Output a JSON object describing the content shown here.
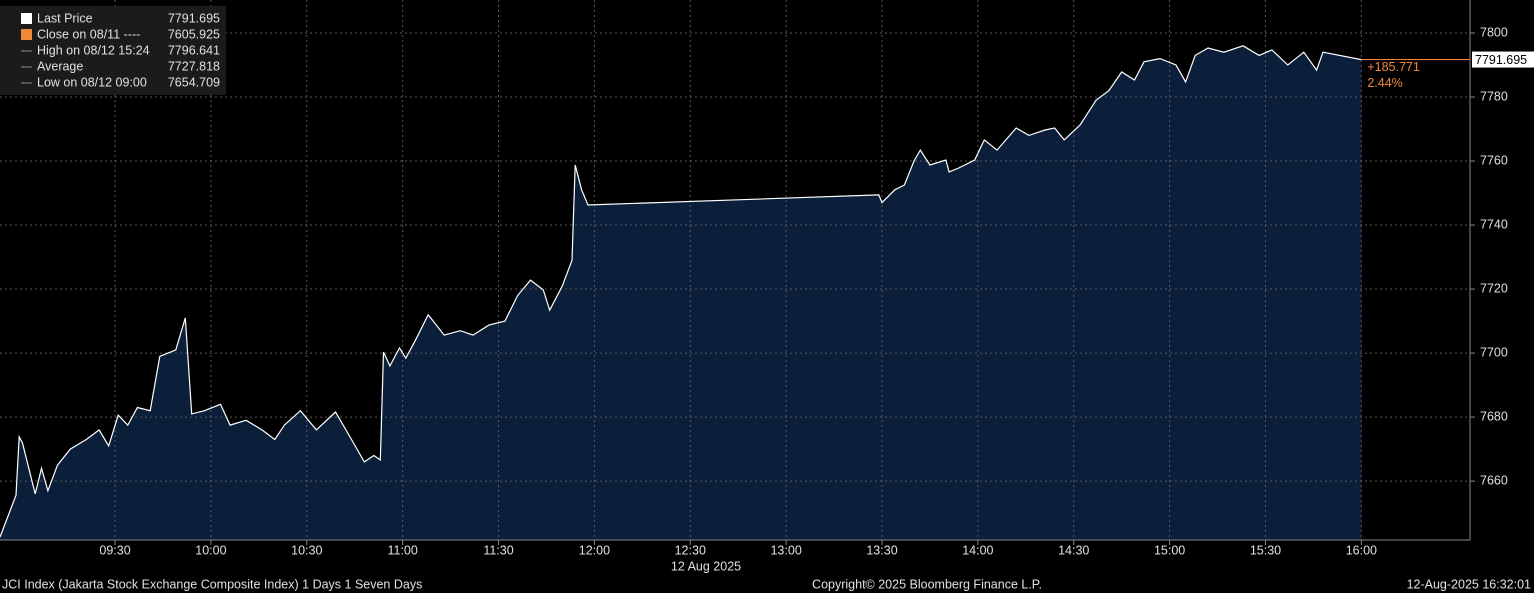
{
  "chart_data": {
    "type": "area",
    "legend": [
      {
        "label": "Last Price",
        "value": 7791.695
      },
      {
        "label": "Close on 08/11 ----",
        "value": 7605.925
      },
      {
        "label": "High on 08/12 15:24",
        "value": 7796.641
      },
      {
        "label": "Average",
        "value": 7727.818
      },
      {
        "label": "Low on 08/12 09:00",
        "value": 7654.709
      }
    ],
    "x": [
      "08:54",
      "08:59",
      "09:00",
      "09:01",
      "09:05",
      "09:07",
      "09:09",
      "09:12",
      "09:16",
      "09:21",
      "09:25",
      "09:28",
      "09:31",
      "09:34",
      "09:37",
      "09:41",
      "09:44",
      "09:49",
      "09:52",
      "09:54",
      "09:58",
      "10:03",
      "10:06",
      "10:11",
      "10:16",
      "10:20",
      "10:23",
      "10:28",
      "10:33",
      "10:39",
      "10:44",
      "10:48",
      "10:51",
      "10:53",
      "10:54",
      "10:56",
      "10:59",
      "11:01",
      "11:04",
      "11:08",
      "11:13",
      "11:18",
      "11:22",
      "11:27",
      "11:32",
      "11:36",
      "11:40",
      "11:44",
      "11:46",
      "11:50",
      "11:53",
      "11:54",
      "11:56",
      "11:58",
      "13:29",
      "13:30",
      "13:34",
      "13:37",
      "13:40",
      "13:42",
      "13:45",
      "13:50",
      "13:51",
      "13:54",
      "13:59",
      "14:02",
      "14:06",
      "14:12",
      "14:16",
      "14:21",
      "14:24",
      "14:27",
      "14:32",
      "14:37",
      "14:41",
      "14:45",
      "14:49",
      "14:52",
      "14:57",
      "15:02",
      "15:05",
      "15:08",
      "15:12",
      "15:17",
      "15:23",
      "15:28",
      "15:32",
      "15:37",
      "15:42",
      "15:46",
      "15:48",
      "16:00"
    ],
    "series": [
      {
        "color": "#ffffff",
        "fill": "#0b1f3b",
        "values": [
          7642.5,
          7655.6,
          7673.8,
          7672,
          7656,
          7664,
          7657,
          7665,
          7670,
          7673,
          7676,
          7671,
          7680.6,
          7677.5,
          7683,
          7682,
          7699,
          7701,
          7711,
          7681,
          7682,
          7684,
          7677.5,
          7679,
          7676,
          7673,
          7677.5,
          7682,
          7676,
          7681.6,
          7673,
          7666,
          7668,
          7666.6,
          7700.3,
          7696,
          7701.6,
          7698.4,
          7704,
          7712,
          7705.6,
          7707,
          7705.6,
          7708.75,
          7710,
          7718,
          7722.8,
          7719.7,
          7713.4,
          7721,
          7729,
          7758.75,
          7751,
          7746.25,
          7749.4,
          7747,
          7751,
          7752.5,
          7760,
          7763.4,
          7758.75,
          7760.3,
          7756.6,
          7757.8,
          7760.3,
          7766.6,
          7763.4,
          7770.3,
          7768,
          7769.7,
          7770.3,
          7766.6,
          7771.25,
          7779,
          7782,
          7787.8,
          7785.3,
          7791,
          7792,
          7790,
          7784.7,
          7793,
          7795.3,
          7794,
          7796,
          7793,
          7794.7,
          7790,
          7794,
          7788.4,
          7794,
          7791.695
        ]
      }
    ],
    "xlim": [
      "08:54",
      "16:34"
    ],
    "xticks": [
      "09:30",
      "10:00",
      "10:30",
      "11:00",
      "11:30",
      "12:00",
      "12:30",
      "13:00",
      "13:30",
      "14:00",
      "14:30",
      "15:00",
      "15:30",
      "16:00"
    ],
    "date_label": "12 Aug 2025",
    "ylim": [
      7641.6,
      7810.3
    ],
    "yticks": [
      7660,
      7680,
      7700,
      7720,
      7740,
      7760,
      7780,
      7800
    ],
    "grid": true,
    "change_labels": [
      "+185.771",
      "2.44%"
    ],
    "change_color": "#f0883a",
    "footer": [
      "JCI Index (Jakarta Stock Exchange Composite Index) 1 Days 1 Seven Days",
      "Copyright© 2025 Bloomberg Finance L.P.",
      "12-Aug-2025 16:32:01"
    ]
  }
}
